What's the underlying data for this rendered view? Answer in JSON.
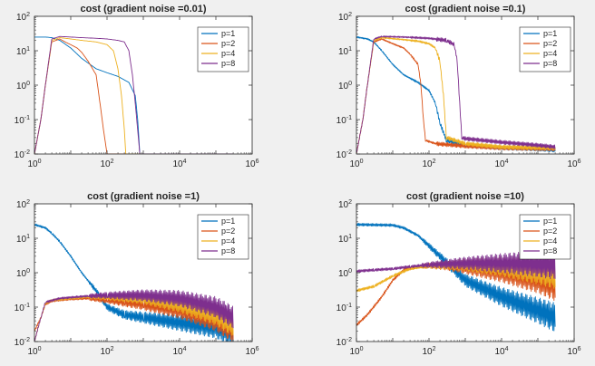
{
  "figure": {
    "background": "#f0f0f0",
    "axes_color": "#262626",
    "series_colors": [
      "#0072bd",
      "#d95319",
      "#edb120",
      "#7e2f8e"
    ]
  },
  "chart_data": [
    {
      "type": "line",
      "title": "cost (gradient noise =0.01)",
      "xscale": "log",
      "yscale": "log",
      "xlim": [
        1,
        1000000
      ],
      "ylim": [
        0.01,
        100
      ],
      "xticks": [
        "10^0",
        "10^2",
        "10^4",
        "10^6"
      ],
      "yticks": [
        "10^-2",
        "10^-1",
        "10^0",
        "10^1",
        "10^2"
      ],
      "legend": "top-right",
      "series": [
        {
          "name": "p=1",
          "points": [
            [
              1,
              25
            ],
            [
              2,
              25
            ],
            [
              3,
              24
            ],
            [
              5,
              20
            ],
            [
              10,
              12
            ],
            [
              20,
              6
            ],
            [
              50,
              3
            ],
            [
              100,
              2.3
            ],
            [
              200,
              1.8
            ],
            [
              400,
              1.2
            ],
            [
              600,
              0.5
            ],
            [
              700,
              0.1
            ],
            [
              800,
              0.01
            ],
            [
              1000,
              0.01
            ],
            [
              10000,
              0.01
            ],
            [
              100000,
              0.01
            ],
            [
              300000,
              0.01
            ]
          ]
        },
        {
          "name": "p=2",
          "points": [
            [
              1,
              0.01
            ],
            [
              1.5,
              0.1
            ],
            [
              2,
              1
            ],
            [
              3,
              18
            ],
            [
              5,
              22
            ],
            [
              7,
              18
            ],
            [
              10,
              15
            ],
            [
              15,
              12
            ],
            [
              20,
              9
            ],
            [
              30,
              5
            ],
            [
              50,
              2
            ],
            [
              60,
              0.5
            ],
            [
              80,
              0.05
            ],
            [
              100,
              0.01
            ],
            [
              300000,
              0.01
            ]
          ]
        },
        {
          "name": "p=4",
          "points": [
            [
              1,
              0.01
            ],
            [
              1.5,
              0.1
            ],
            [
              2,
              1
            ],
            [
              3,
              20
            ],
            [
              5,
              24
            ],
            [
              10,
              22
            ],
            [
              20,
              20
            ],
            [
              50,
              18
            ],
            [
              100,
              15
            ],
            [
              150,
              10
            ],
            [
              200,
              3
            ],
            [
              250,
              0.5
            ],
            [
              300,
              0.05
            ],
            [
              330,
              0.01
            ],
            [
              300000,
              0.01
            ]
          ]
        },
        {
          "name": "p=8",
          "points": [
            [
              1,
              0.01
            ],
            [
              1.5,
              0.1
            ],
            [
              2,
              1
            ],
            [
              3,
              22
            ],
            [
              5,
              26
            ],
            [
              10,
              25
            ],
            [
              20,
              24
            ],
            [
              50,
              23
            ],
            [
              100,
              22
            ],
            [
              200,
              20
            ],
            [
              300,
              18
            ],
            [
              400,
              10
            ],
            [
              500,
              2
            ],
            [
              600,
              0.3
            ],
            [
              700,
              0.05
            ],
            [
              800,
              0.01
            ],
            [
              300000,
              0.01
            ]
          ]
        }
      ]
    },
    {
      "type": "line",
      "title": "cost (gradient noise =0.1)",
      "xscale": "log",
      "yscale": "log",
      "xlim": [
        1,
        1000000
      ],
      "ylim": [
        0.01,
        100
      ],
      "xticks": [
        "10^0",
        "10^2",
        "10^4",
        "10^6"
      ],
      "yticks": [
        "10^-2",
        "10^-1",
        "10^0",
        "10^1",
        "10^2"
      ],
      "legend": "top-right",
      "series": [
        {
          "name": "p=1",
          "points": [
            [
              1,
              25
            ],
            [
              2,
              22
            ],
            [
              3,
              18
            ],
            [
              5,
              10
            ],
            [
              10,
              4
            ],
            [
              20,
              2
            ],
            [
              50,
              1.2
            ],
            [
              100,
              0.7
            ],
            [
              150,
              0.3
            ],
            [
              200,
              0.08
            ],
            [
              300,
              0.025
            ],
            [
              1000,
              0.018
            ],
            [
              10000,
              0.015
            ],
            [
              100000,
              0.014
            ],
            [
              300000,
              0.013
            ]
          ]
        },
        {
          "name": "p=2",
          "points": [
            [
              1,
              0.01
            ],
            [
              1.5,
              0.1
            ],
            [
              2,
              1
            ],
            [
              3,
              18
            ],
            [
              5,
              22
            ],
            [
              10,
              16
            ],
            [
              20,
              12
            ],
            [
              30,
              8
            ],
            [
              50,
              4
            ],
            [
              60,
              1
            ],
            [
              70,
              0.1
            ],
            [
              80,
              0.025
            ],
            [
              150,
              0.02
            ],
            [
              1000,
              0.017
            ],
            [
              10000,
              0.015
            ],
            [
              300000,
              0.014
            ]
          ]
        },
        {
          "name": "p=4",
          "points": [
            [
              1,
              0.01
            ],
            [
              1.5,
              0.1
            ],
            [
              2,
              1
            ],
            [
              3,
              20
            ],
            [
              5,
              24
            ],
            [
              20,
              21
            ],
            [
              50,
              19
            ],
            [
              100,
              16
            ],
            [
              150,
              12
            ],
            [
              200,
              5
            ],
            [
              250,
              0.5
            ],
            [
              300,
              0.03
            ],
            [
              1000,
              0.02
            ],
            [
              10000,
              0.016
            ],
            [
              300000,
              0.015
            ]
          ]
        },
        {
          "name": "p=8",
          "points": [
            [
              1,
              0.01
            ],
            [
              1.5,
              0.1
            ],
            [
              2,
              1
            ],
            [
              3,
              22
            ],
            [
              5,
              26
            ],
            [
              20,
              25
            ],
            [
              100,
              23
            ],
            [
              300,
              20
            ],
            [
              500,
              15
            ],
            [
              600,
              5
            ],
            [
              700,
              0.3
            ],
            [
              800,
              0.03
            ],
            [
              1000,
              0.028
            ],
            [
              10000,
              0.022
            ],
            [
              100000,
              0.018
            ],
            [
              300000,
              0.016
            ]
          ]
        }
      ]
    },
    {
      "type": "line",
      "title": "cost (gradient noise =1)",
      "xscale": "log",
      "yscale": "log",
      "xlim": [
        1,
        1000000
      ],
      "ylim": [
        0.01,
        100
      ],
      "xticks": [
        "10^0",
        "10^2",
        "10^4",
        "10^6"
      ],
      "yticks": [
        "10^-2",
        "10^-1",
        "10^0",
        "10^1",
        "10^2"
      ],
      "legend": "top-right",
      "series": [
        {
          "name": "p=1",
          "points": [
            [
              1,
              25
            ],
            [
              2,
              20
            ],
            [
              3,
              14
            ],
            [
              5,
              8
            ],
            [
              10,
              3
            ],
            [
              20,
              1
            ],
            [
              50,
              0.3
            ],
            [
              100,
              0.1
            ],
            [
              300,
              0.06
            ],
            [
              1000,
              0.05
            ],
            [
              10000,
              0.035
            ],
            [
              100000,
              0.025
            ],
            [
              300000,
              0.015
            ]
          ]
        },
        {
          "name": "p=2",
          "points": [
            [
              1,
              0.02
            ],
            [
              1.5,
              0.05
            ],
            [
              2,
              0.12
            ],
            [
              3,
              0.15
            ],
            [
              5,
              0.16
            ],
            [
              10,
              0.17
            ],
            [
              30,
              0.18
            ],
            [
              100,
              0.16
            ],
            [
              300,
              0.14
            ],
            [
              1000,
              0.12
            ],
            [
              10000,
              0.08
            ],
            [
              100000,
              0.04
            ],
            [
              300000,
              0.02
            ]
          ]
        },
        {
          "name": "p=4",
          "points": [
            [
              1,
              0.01
            ],
            [
              1.5,
              0.05
            ],
            [
              2,
              0.13
            ],
            [
              3,
              0.16
            ],
            [
              10,
              0.18
            ],
            [
              30,
              0.2
            ],
            [
              100,
              0.2
            ],
            [
              1000,
              0.18
            ],
            [
              10000,
              0.12
            ],
            [
              100000,
              0.06
            ],
            [
              300000,
              0.03
            ]
          ]
        },
        {
          "name": "p=8",
          "points": [
            [
              1,
              0.01
            ],
            [
              1.5,
              0.05
            ],
            [
              2,
              0.14
            ],
            [
              5,
              0.18
            ],
            [
              30,
              0.21
            ],
            [
              100,
              0.22
            ],
            [
              1000,
              0.22
            ],
            [
              10000,
              0.18
            ],
            [
              100000,
              0.1
            ],
            [
              300000,
              0.05
            ]
          ]
        }
      ]
    },
    {
      "type": "line",
      "title": "cost (gradient noise =10)",
      "xscale": "log",
      "yscale": "log",
      "xlim": [
        1,
        1000000
      ],
      "ylim": [
        0.01,
        100
      ],
      "xticks": [
        "10^0",
        "10^2",
        "10^4",
        "10^6"
      ],
      "yticks": [
        "10^-2",
        "10^-1",
        "10^0",
        "10^1",
        "10^2"
      ],
      "legend": "top-right",
      "series": [
        {
          "name": "p=1",
          "points": [
            [
              1,
              25
            ],
            [
              10,
              24
            ],
            [
              20,
              20
            ],
            [
              50,
              12
            ],
            [
              100,
              6
            ],
            [
              200,
              3
            ],
            [
              500,
              1.2
            ],
            [
              1000,
              0.6
            ],
            [
              10000,
              0.2
            ],
            [
              100000,
              0.08
            ],
            [
              300000,
              0.05
            ]
          ]
        },
        {
          "name": "p=2",
          "points": [
            [
              1,
              0.03
            ],
            [
              2,
              0.06
            ],
            [
              5,
              0.2
            ],
            [
              10,
              0.6
            ],
            [
              20,
              1.2
            ],
            [
              50,
              1.5
            ],
            [
              100,
              1.6
            ],
            [
              300,
              1.6
            ],
            [
              1000,
              1.4
            ],
            [
              10000,
              1
            ],
            [
              100000,
              0.6
            ],
            [
              300000,
              0.4
            ]
          ]
        },
        {
          "name": "p=4",
          "points": [
            [
              1,
              0.3
            ],
            [
              3,
              0.4
            ],
            [
              10,
              0.8
            ],
            [
              30,
              1.3
            ],
            [
              100,
              1.6
            ],
            [
              1000,
              1.7
            ],
            [
              10000,
              1.5
            ],
            [
              100000,
              1.1
            ],
            [
              300000,
              0.9
            ]
          ]
        },
        {
          "name": "p=8",
          "points": [
            [
              1,
              1.1
            ],
            [
              3,
              1.2
            ],
            [
              10,
              1.3
            ],
            [
              30,
              1.5
            ],
            [
              100,
              1.7
            ],
            [
              1000,
              1.9
            ],
            [
              10000,
              1.9
            ],
            [
              100000,
              1.8
            ],
            [
              300000,
              1.7
            ]
          ]
        }
      ]
    }
  ]
}
